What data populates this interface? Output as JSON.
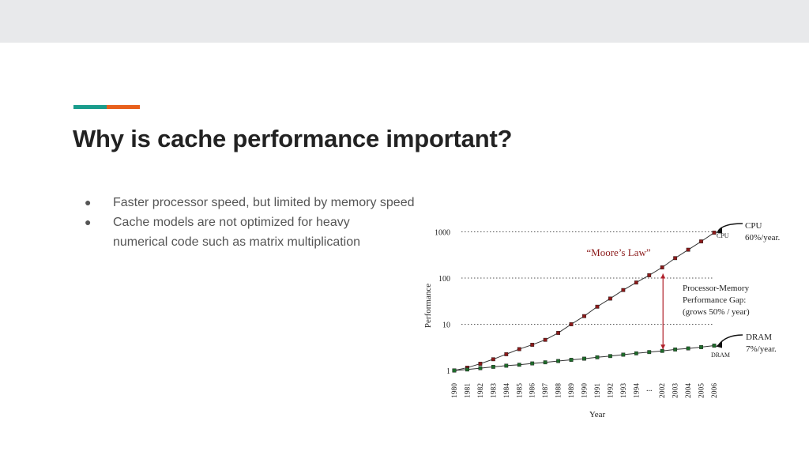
{
  "slide": {
    "title": "Why is cache performance important?",
    "bullets": [
      "Faster processor speed, but limited by memory speed",
      "Cache models are not optimized for heavy numerical code such as matrix multiplication"
    ],
    "bullet_symbol": "●",
    "accent_colors": [
      "#1a9c8c",
      "#e8601c"
    ]
  },
  "chart_data": {
    "type": "line",
    "title": "“Moore’s Law”",
    "xlabel": "Year",
    "ylabel": "Performance",
    "y_scale": "log",
    "ylim": [
      1,
      1000
    ],
    "y_ticks": [
      "1",
      "10",
      "100",
      "1000"
    ],
    "categories": [
      "1980",
      "1981",
      "1982",
      "1983",
      "1984",
      "1985",
      "1986",
      "1987",
      "1988",
      "1989",
      "1990",
      "1991",
      "1992",
      "1993",
      "1994",
      "...",
      "2002",
      "2003",
      "2004",
      "2005",
      "2006"
    ],
    "series": [
      {
        "name": "CPU",
        "color": "#8b1a1a",
        "values": [
          1,
          1.15,
          1.4,
          1.75,
          2.25,
          2.9,
          3.6,
          4.6,
          6.5,
          10,
          15,
          24,
          36,
          55,
          80,
          115,
          170,
          270,
          410,
          620,
          960
        ]
      },
      {
        "name": "DRAM",
        "color": "#1e6b2a",
        "values": [
          1,
          1.05,
          1.12,
          1.2,
          1.27,
          1.33,
          1.42,
          1.5,
          1.6,
          1.7,
          1.8,
          1.93,
          2.05,
          2.2,
          2.35,
          2.5,
          2.65,
          2.85,
          3.0,
          3.2,
          3.45
        ]
      }
    ],
    "annotations": {
      "cpu_label": "CPU",
      "cpu_rate": "60%/year.",
      "cpu_small": "CPU",
      "dram_label": "DRAM",
      "dram_rate": "7%/year.",
      "dram_small": "DRAM",
      "gap_line1": "Processor-Memory",
      "gap_line2": "Performance Gap:",
      "gap_line3": "(grows 50% / year)"
    },
    "gridlines": "dotted at 10, 100, 1000"
  }
}
